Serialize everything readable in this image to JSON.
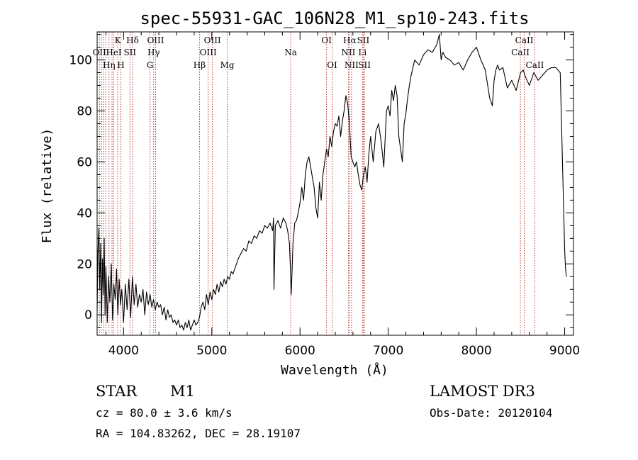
{
  "chart_data": {
    "type": "line",
    "title": "spec-55931-GAC_106N28_M1_sp10-243.fits",
    "xlabel": "Wavelength (Å)",
    "ylabel": "Flux (relative)",
    "xlim": [
      3700,
      9100
    ],
    "ylim": [
      -8,
      111
    ],
    "x_ticks": [
      4000,
      5000,
      6000,
      7000,
      8000,
      9000
    ],
    "y_ticks": [
      0,
      20,
      40,
      60,
      80,
      100
    ],
    "series": [
      {
        "name": "spectrum",
        "x": [
          3700,
          3710,
          3720,
          3730,
          3740,
          3750,
          3760,
          3770,
          3780,
          3790,
          3800,
          3815,
          3830,
          3845,
          3860,
          3875,
          3890,
          3905,
          3920,
          3935,
          3950,
          3965,
          3980,
          4000,
          4020,
          4040,
          4060,
          4080,
          4100,
          4120,
          4140,
          4160,
          4180,
          4200,
          4220,
          4240,
          4260,
          4280,
          4300,
          4320,
          4340,
          4360,
          4380,
          4400,
          4420,
          4440,
          4460,
          4480,
          4500,
          4520,
          4540,
          4560,
          4580,
          4600,
          4620,
          4640,
          4660,
          4680,
          4700,
          4720,
          4740,
          4760,
          4780,
          4800,
          4820,
          4840,
          4860,
          4880,
          4900,
          4920,
          4940,
          4960,
          4980,
          5000,
          5020,
          5040,
          5060,
          5080,
          5100,
          5120,
          5140,
          5160,
          5180,
          5200,
          5220,
          5240,
          5260,
          5280,
          5300,
          5330,
          5360,
          5390,
          5420,
          5450,
          5480,
          5510,
          5540,
          5570,
          5600,
          5630,
          5660,
          5690,
          5700,
          5705,
          5720,
          5750,
          5780,
          5810,
          5840,
          5860,
          5880,
          5895,
          5900,
          5910,
          5920,
          5940,
          5960,
          5980,
          6000,
          6020,
          6040,
          6060,
          6080,
          6100,
          6120,
          6140,
          6160,
          6180,
          6200,
          6220,
          6240,
          6260,
          6280,
          6300,
          6320,
          6340,
          6360,
          6380,
          6400,
          6420,
          6440,
          6460,
          6480,
          6500,
          6520,
          6540,
          6560,
          6570,
          6580,
          6600,
          6620,
          6640,
          6660,
          6680,
          6700,
          6720,
          6740,
          6760,
          6780,
          6800,
          6830,
          6860,
          6890,
          6920,
          6950,
          6980,
          7000,
          7020,
          7040,
          7060,
          7080,
          7100,
          7120,
          7140,
          7160,
          7180,
          7200,
          7220,
          7240,
          7260,
          7280,
          7300,
          7350,
          7400,
          7450,
          7500,
          7550,
          7580,
          7600,
          7610,
          7620,
          7650,
          7700,
          7750,
          7800,
          7850,
          7900,
          7950,
          8000,
          8050,
          8100,
          8150,
          8180,
          8200,
          8220,
          8240,
          8260,
          8300,
          8350,
          8400,
          8450,
          8500,
          8530,
          8560,
          8600,
          8650,
          8700,
          8750,
          8800,
          8850,
          8900,
          8950,
          9000,
          9010,
          9020
        ],
        "y": [
          2,
          25,
          34,
          10,
          28,
          -3,
          22,
          8,
          30,
          0,
          19,
          -3,
          15,
          5,
          20,
          -2,
          12,
          6,
          18,
          0,
          14,
          4,
          10,
          -3,
          12,
          2,
          14,
          -1,
          15,
          4,
          12,
          3,
          8,
          5,
          10,
          0,
          9,
          4,
          8,
          3,
          6,
          2,
          5,
          3,
          4,
          0,
          3,
          -2,
          2,
          -1,
          0,
          -3,
          -2,
          -4,
          -2,
          -5,
          -4,
          -6,
          -3,
          -5,
          -2,
          -6,
          -4,
          -2,
          -4,
          -3,
          -1,
          3,
          5,
          2,
          8,
          4,
          9,
          6,
          10,
          8,
          12,
          9,
          13,
          11,
          14,
          12,
          15,
          14,
          17,
          16,
          18,
          20,
          22,
          24,
          26,
          25,
          29,
          28,
          31,
          30,
          33,
          32,
          35,
          34,
          36,
          33,
          38,
          10,
          35,
          37,
          34,
          38,
          36,
          33,
          28,
          14,
          8,
          17,
          28,
          36,
          37,
          40,
          44,
          50,
          45,
          55,
          60,
          62,
          58,
          54,
          50,
          42,
          38,
          52,
          45,
          55,
          60,
          65,
          62,
          70,
          66,
          72,
          75,
          74,
          78,
          70,
          76,
          80,
          86,
          83,
          75,
          68,
          62,
          60,
          58,
          60,
          55,
          51,
          49,
          55,
          58,
          52,
          63,
          70,
          60,
          72,
          75,
          68,
          58,
          80,
          82,
          78,
          88,
          84,
          90,
          86,
          70,
          65,
          60,
          75,
          79,
          85,
          90,
          94,
          97,
          100,
          98,
          102,
          104,
          103,
          106,
          110,
          100,
          102,
          103,
          101,
          100,
          98,
          99,
          96,
          100,
          103,
          105,
          100,
          96,
          85,
          82,
          92,
          96,
          98,
          96,
          97,
          89,
          92,
          88,
          95,
          96,
          93,
          90,
          95,
          92,
          94,
          96,
          97,
          97,
          95,
          25,
          18,
          15
        ],
        "color": "#000000"
      }
    ],
    "lines": [
      {
        "x": 3726,
        "label": "OII",
        "row": 1
      },
      {
        "x": 3750,
        "label": "",
        "row": 0
      },
      {
        "x": 3771,
        "label": "",
        "row": 0
      },
      {
        "x": 3798,
        "label": "",
        "row": 0
      },
      {
        "x": 3835,
        "label": "Hη",
        "row": 2
      },
      {
        "x": 3869,
        "label": "",
        "row": 0
      },
      {
        "x": 3889,
        "label": "HeI",
        "row": 1
      },
      {
        "x": 3934,
        "label": "K",
        "row": 0
      },
      {
        "x": 3969,
        "label": "H",
        "row": 2
      },
      {
        "x": 4072,
        "label": "SII",
        "row": 1
      },
      {
        "x": 4102,
        "label": "Hδ",
        "row": 0
      },
      {
        "x": 4300,
        "label": "G",
        "row": 2
      },
      {
        "x": 4341,
        "label": "Hγ",
        "row": 1
      },
      {
        "x": 4363,
        "label": "OIII",
        "row": 0
      },
      {
        "x": 4861,
        "label": "Hβ",
        "row": 2
      },
      {
        "x": 4959,
        "label": "OIII",
        "row": 1
      },
      {
        "x": 5007,
        "label": "OIII",
        "row": 0
      },
      {
        "x": 5175,
        "label": "Mg",
        "row": 2
      },
      {
        "x": 5894,
        "label": "Na",
        "row": 1
      },
      {
        "x": 6300,
        "label": "OI",
        "row": 0
      },
      {
        "x": 6364,
        "label": "OI",
        "row": 2
      },
      {
        "x": 6548,
        "label": "NII",
        "row": 1
      },
      {
        "x": 6563,
        "label": "Hα",
        "row": 0
      },
      {
        "x": 6584,
        "label": "NII",
        "row": 2
      },
      {
        "x": 6708,
        "label": "Li",
        "row": 1
      },
      {
        "x": 6717,
        "label": "SII",
        "row": 0
      },
      {
        "x": 6731,
        "label": "SII",
        "row": 2
      },
      {
        "x": 8498,
        "label": "CaII",
        "row": 1
      },
      {
        "x": 8542,
        "label": "CaII",
        "row": 0
      },
      {
        "x": 8662,
        "label": "CaII",
        "row": 2
      }
    ],
    "line_color": "#b22222"
  },
  "info": {
    "object_class": "STAR",
    "subclass": "M1",
    "survey": "LAMOST DR3",
    "redshift": "cz = 80.0 ± 3.6 km/s",
    "obs_date": "Obs-Date: 20120104",
    "coords": "RA = 104.83262, DEC =  28.19107"
  }
}
